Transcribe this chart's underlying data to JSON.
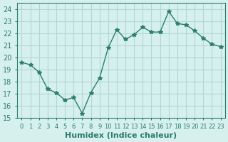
{
  "x": [
    0,
    1,
    2,
    3,
    4,
    5,
    6,
    7,
    8,
    9,
    10,
    11,
    12,
    13,
    14,
    15,
    16,
    17,
    18,
    19,
    20,
    21,
    22,
    23
  ],
  "y": [
    19.6,
    19.4,
    18.8,
    17.4,
    17.1,
    16.5,
    16.7,
    15.4,
    17.1,
    18.3,
    20.8,
    22.3,
    21.5,
    21.9,
    22.5,
    22.1,
    22.1,
    23.8,
    22.8,
    22.7,
    22.2,
    21.6,
    21.1,
    20.9
  ],
  "line_color": "#2e7d6e",
  "marker": "*",
  "marker_size": 4,
  "bg_color": "#d6f0ee",
  "grid_color": "#b0d8d4",
  "xlabel": "Humidex (Indice chaleur)",
  "ylabel": "",
  "xlim": [
    -0.5,
    23.5
  ],
  "ylim": [
    15,
    24.5
  ],
  "yticks": [
    15,
    16,
    17,
    18,
    19,
    20,
    21,
    22,
    23,
    24
  ],
  "xtick_labels": [
    "0",
    "1",
    "2",
    "3",
    "4",
    "5",
    "6",
    "7",
    "8",
    "9",
    "10",
    "11",
    "12",
    "13",
    "14",
    "15",
    "16",
    "17",
    "18",
    "19",
    "20",
    "21",
    "22",
    "23"
  ],
  "tick_color": "#2e7d6e",
  "label_color": "#2e7d6e",
  "xlabel_fontsize": 8,
  "tick_fontsize": 7
}
